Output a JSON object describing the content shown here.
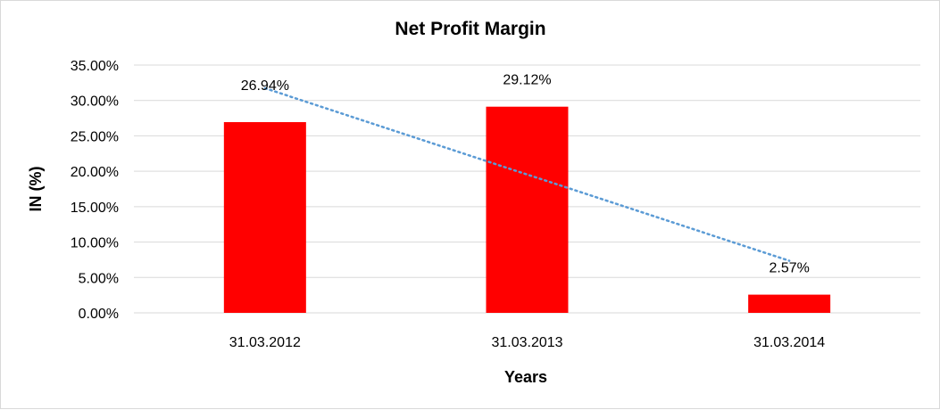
{
  "chart_data": {
    "type": "bar",
    "title": "Net Profit Margin",
    "xlabel": "Years",
    "ylabel": "IN (%)",
    "categories": [
      "31.03.2012",
      "31.03.2013",
      "31.03.2014"
    ],
    "values": [
      26.94,
      29.12,
      2.57
    ],
    "data_labels": [
      "26.94%",
      "29.12%",
      "2.57%"
    ],
    "ylim": [
      0,
      35
    ],
    "yticks": [
      0,
      5,
      10,
      15,
      20,
      25,
      30,
      35
    ],
    "ytick_labels": [
      "0.00%",
      "5.00%",
      "10.00%",
      "15.00%",
      "20.00%",
      "25.00%",
      "30.00%",
      "35.00%"
    ],
    "grid": true,
    "trendline": {
      "type": "linear",
      "style": "dotted",
      "color": "#5b9bd5"
    },
    "bar_color": "#ff0000"
  }
}
